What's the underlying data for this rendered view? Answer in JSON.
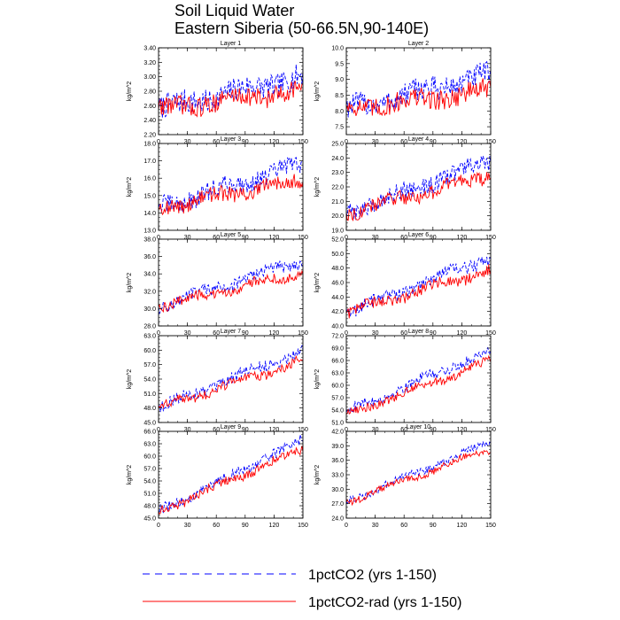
{
  "title": "Soil Liquid Water",
  "subtitle": "Eastern Siberia (50-66.5N,90-140E)",
  "legend": [
    {
      "label": "1pctCO2 (yrs 1-150)",
      "color": "#0000ff",
      "dash": "dashed"
    },
    {
      "label": "1pctCO2-rad (yrs 1-150)",
      "color": "#ff0000",
      "dash": "solid"
    }
  ],
  "chart_data": [
    {
      "type": "line",
      "title": "Layer 1",
      "xlabel": "",
      "ylabel": "kg/m^2",
      "xlim": [
        0,
        150
      ],
      "ylim": [
        2.2,
        3.4
      ],
      "xticks": [
        "0",
        "30",
        "60",
        "90",
        "120",
        "150"
      ],
      "yticks": [
        "2.20",
        "2.40",
        "2.60",
        "2.80",
        "3.00",
        "3.20",
        "3.40"
      ],
      "series": [
        {
          "name": "1pctCO2",
          "start": 2.55,
          "end": 3.0,
          "noise": 0.17,
          "wave": 0.05
        },
        {
          "name": "1pctCO2-rad",
          "start": 2.55,
          "end": 2.82,
          "noise": 0.14,
          "wave": 0.05
        }
      ]
    },
    {
      "type": "line",
      "title": "Layer 2",
      "xlabel": "",
      "ylabel": "kg/m^2",
      "xlim": [
        0,
        150
      ],
      "ylim": [
        7.25,
        10.0
      ],
      "xticks": [
        "0",
        "30",
        "60",
        "90",
        "120",
        "150"
      ],
      "yticks": [
        "7.5",
        "8.0",
        "8.5",
        "9.0",
        "9.5",
        "10.0"
      ],
      "series": [
        {
          "name": "1pctCO2",
          "start": 8.05,
          "end": 9.15,
          "noise": 0.38,
          "wave": 0.1
        },
        {
          "name": "1pctCO2-rad",
          "start": 8.05,
          "end": 8.65,
          "noise": 0.33,
          "wave": 0.1
        }
      ]
    },
    {
      "type": "line",
      "title": "Layer 3",
      "xlabel": "",
      "ylabel": "kg/m^2",
      "xlim": [
        0,
        150
      ],
      "ylim": [
        13.0,
        18.0
      ],
      "xticks": [
        "0",
        "30",
        "60",
        "90",
        "120",
        "150"
      ],
      "yticks": [
        "13.0",
        "14.0",
        "15.0",
        "16.0",
        "17.0",
        "18.0"
      ],
      "series": [
        {
          "name": "1pctCO2",
          "start": 14.3,
          "end": 16.8,
          "noise": 0.55,
          "wave": 0.2
        },
        {
          "name": "1pctCO2-rad",
          "start": 14.3,
          "end": 15.9,
          "noise": 0.45,
          "wave": 0.2
        }
      ]
    },
    {
      "type": "line",
      "title": "Layer 4",
      "xlabel": "",
      "ylabel": "kg/m^2",
      "xlim": [
        0,
        150
      ],
      "ylim": [
        19.0,
        25.0
      ],
      "xticks": [
        "0",
        "30",
        "60",
        "90",
        "120",
        "150"
      ],
      "yticks": [
        "19.0",
        "20.0",
        "21.0",
        "22.0",
        "23.0",
        "24.0",
        "25.0"
      ],
      "series": [
        {
          "name": "1pctCO2",
          "start": 20.2,
          "end": 23.8,
          "noise": 0.6,
          "wave": 0.2
        },
        {
          "name": "1pctCO2-rad",
          "start": 20.2,
          "end": 22.8,
          "noise": 0.5,
          "wave": 0.2
        }
      ]
    },
    {
      "type": "line",
      "title": "Layer 5",
      "xlabel": "",
      "ylabel": "kg/m^2",
      "xlim": [
        0,
        150
      ],
      "ylim": [
        28.0,
        38.0
      ],
      "xticks": [
        "0",
        "30",
        "60",
        "90",
        "120",
        "150"
      ],
      "yticks": [
        "28.0",
        "30.0",
        "32.0",
        "34.0",
        "36.0",
        "38.0"
      ],
      "series": [
        {
          "name": "1pctCO2",
          "start": 30.2,
          "end": 35.6,
          "noise": 0.7,
          "wave": 0.3
        },
        {
          "name": "1pctCO2-rad",
          "start": 30.2,
          "end": 34.2,
          "noise": 0.6,
          "wave": 0.3
        }
      ]
    },
    {
      "type": "line",
      "title": "Layer 6",
      "xlabel": "",
      "ylabel": "kg/m^2",
      "xlim": [
        0,
        150
      ],
      "ylim": [
        40.0,
        52.0
      ],
      "xticks": [
        "0",
        "30",
        "60",
        "90",
        "120",
        "150"
      ],
      "yticks": [
        "40.0",
        "42.0",
        "44.0",
        "46.0",
        "48.0",
        "50.0",
        "52.0"
      ],
      "series": [
        {
          "name": "1pctCO2",
          "start": 41.8,
          "end": 49.6,
          "noise": 0.9,
          "wave": 0.4
        },
        {
          "name": "1pctCO2-rad",
          "start": 41.8,
          "end": 47.8,
          "noise": 0.8,
          "wave": 0.4
        }
      ]
    },
    {
      "type": "line",
      "title": "Layer 7",
      "xlabel": "",
      "ylabel": "kg/m^2",
      "xlim": [
        0,
        150
      ],
      "ylim": [
        45.0,
        63.0
      ],
      "xticks": [
        "0",
        "30",
        "60",
        "90",
        "120",
        "150"
      ],
      "yticks": [
        "45.0",
        "48.0",
        "51.0",
        "54.0",
        "57.0",
        "60.0",
        "63.0"
      ],
      "series": [
        {
          "name": "1pctCO2",
          "start": 48.0,
          "end": 60.0,
          "noise": 1.2,
          "wave": 0.5
        },
        {
          "name": "1pctCO2-rad",
          "start": 48.0,
          "end": 57.8,
          "noise": 1.0,
          "wave": 0.5
        }
      ]
    },
    {
      "type": "line",
      "title": "Layer 8",
      "xlabel": "",
      "ylabel": "kg/m^2",
      "xlim": [
        0,
        150
      ],
      "ylim": [
        51.0,
        72.0
      ],
      "xticks": [
        "0",
        "30",
        "60",
        "90",
        "120",
        "150"
      ],
      "yticks": [
        "51.0",
        "54.0",
        "57.0",
        "60.0",
        "63.0",
        "66.0",
        "69.0",
        "72.0"
      ],
      "series": [
        {
          "name": "1pctCO2",
          "start": 53.5,
          "end": 68.5,
          "noise": 1.3,
          "wave": 0.5
        },
        {
          "name": "1pctCO2-rad",
          "start": 53.0,
          "end": 65.8,
          "noise": 1.1,
          "wave": 0.5
        }
      ]
    },
    {
      "type": "line",
      "title": "Layer 9",
      "xlabel": "",
      "ylabel": "kg/m^2",
      "xlim": [
        0,
        150
      ],
      "ylim": [
        45.0,
        66.0
      ],
      "xticks": [
        "0",
        "30",
        "60",
        "90",
        "120",
        "150"
      ],
      "yticks": [
        "45.0",
        "48.0",
        "51.0",
        "54.0",
        "57.0",
        "60.0",
        "63.0",
        "66.0"
      ],
      "series": [
        {
          "name": "1pctCO2",
          "start": 46.5,
          "end": 64.0,
          "noise": 1.3,
          "wave": 0.5
        },
        {
          "name": "1pctCO2-rad",
          "start": 46.5,
          "end": 61.8,
          "noise": 1.1,
          "wave": 0.5
        }
      ]
    },
    {
      "type": "line",
      "title": "Layer 10",
      "xlabel": "",
      "ylabel": "kg/m^2",
      "xlim": [
        0,
        150
      ],
      "ylim": [
        24.0,
        42.0
      ],
      "xticks": [
        "0",
        "30",
        "60",
        "90",
        "120",
        "150"
      ],
      "yticks": [
        "24.0",
        "27.0",
        "30.0",
        "33.0",
        "36.0",
        "39.0",
        "42.0"
      ],
      "series": [
        {
          "name": "1pctCO2",
          "start": 27.5,
          "end": 39.8,
          "noise": 0.8,
          "wave": 0.4
        },
        {
          "name": "1pctCO2-rad",
          "start": 27.3,
          "end": 38.4,
          "noise": 0.7,
          "wave": 0.4
        }
      ]
    }
  ]
}
